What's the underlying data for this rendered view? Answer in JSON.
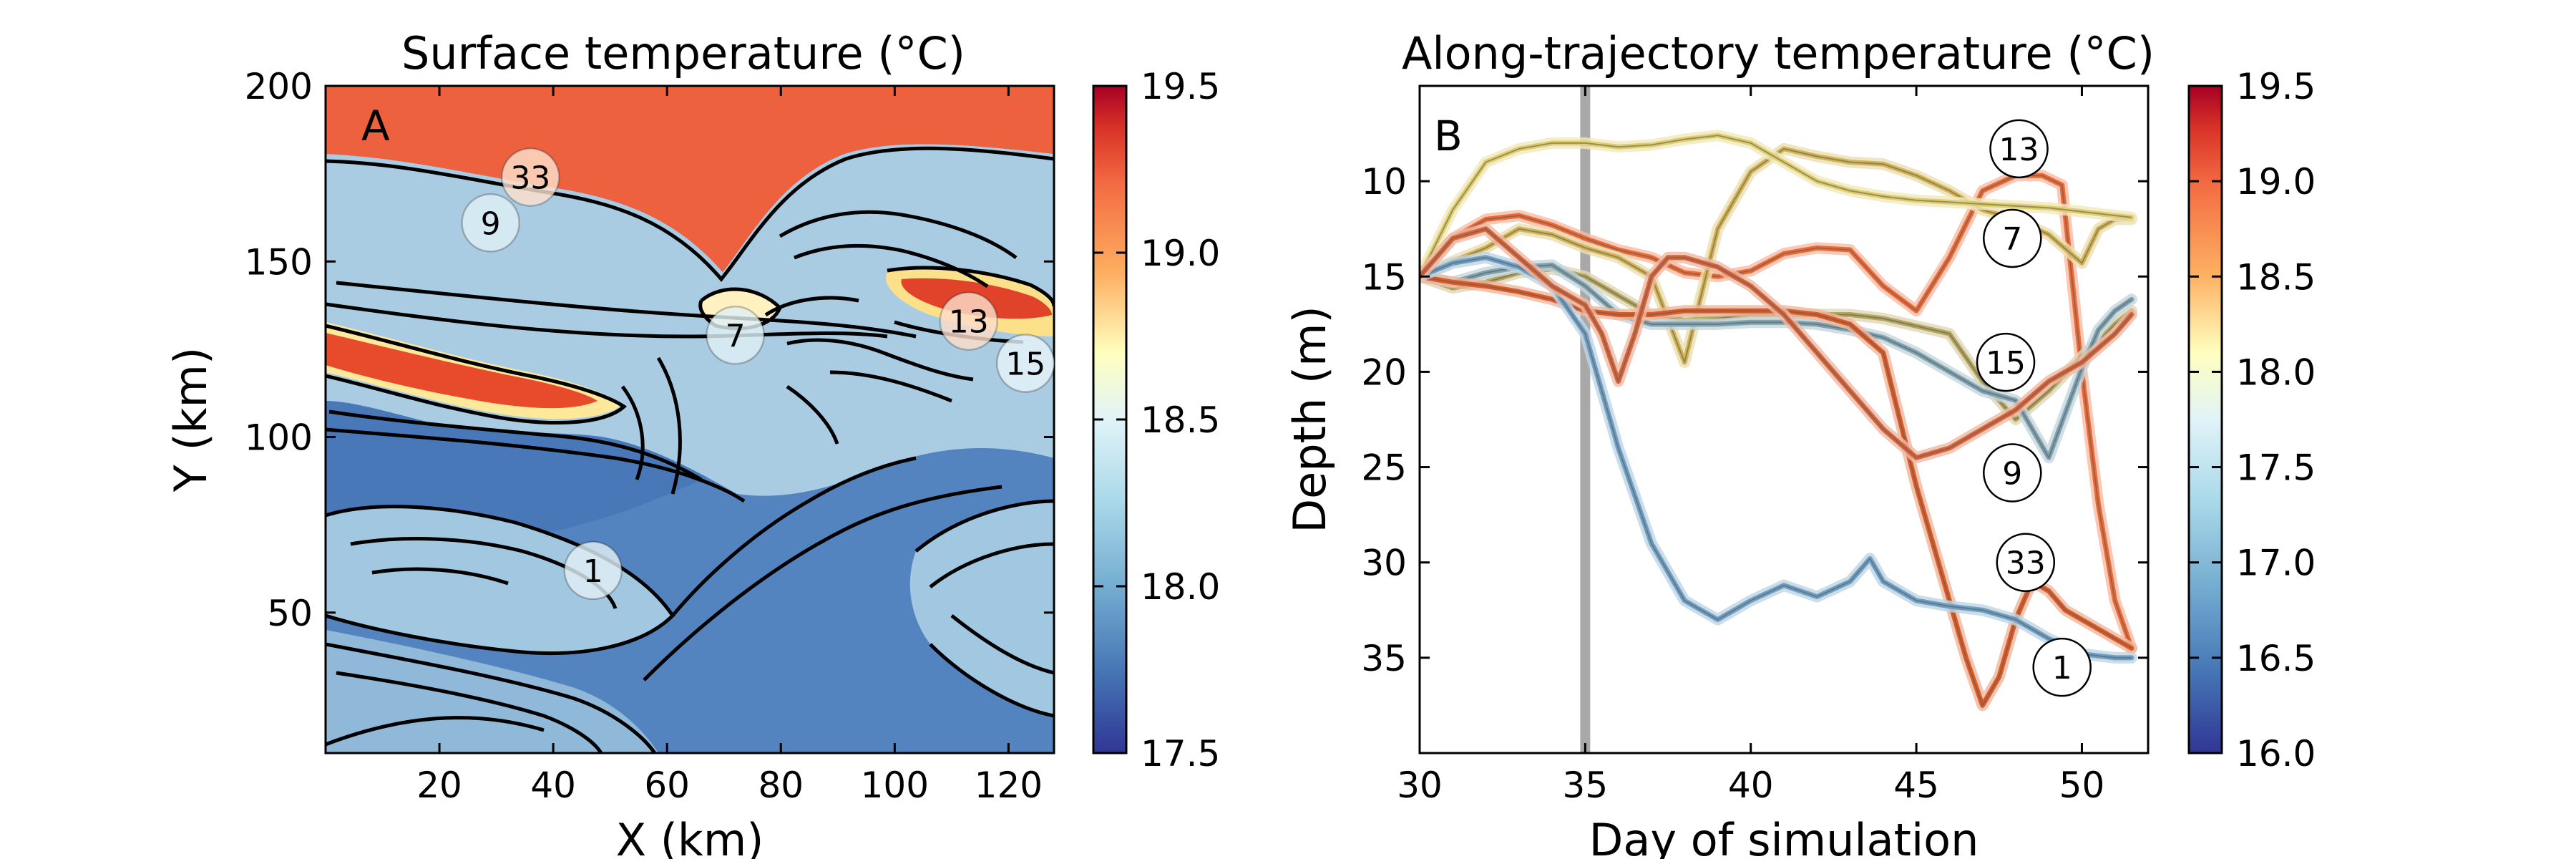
{
  "panel_a": {
    "label": "A",
    "title": "Surface temperature (°C)",
    "xlabel": "X (km)",
    "ylabel": "Y (km)",
    "xlim": [
      0,
      128
    ],
    "ylim": [
      10,
      200
    ],
    "xticks": [
      20,
      40,
      60,
      80,
      100,
      120
    ],
    "yticks": [
      50,
      100,
      150,
      200
    ],
    "colorbar": {
      "vmin": 17.5,
      "vmax": 19.5,
      "ticks": [
        "19.5",
        "19.0",
        "18.5",
        "18.0",
        "17.5"
      ]
    },
    "markers": [
      {
        "id": "33",
        "x": 36,
        "y": 174,
        "temp": 19.0
      },
      {
        "id": "9",
        "x": 29,
        "y": 161,
        "temp": 18.2
      },
      {
        "id": "7",
        "x": 72,
        "y": 129,
        "temp": 18.2
      },
      {
        "id": "13",
        "x": 113,
        "y": 133,
        "temp": 19.05
      },
      {
        "id": "15",
        "x": 123,
        "y": 121,
        "temp": 18.3
      },
      {
        "id": "1",
        "x": 47,
        "y": 62,
        "temp": 18.2
      }
    ]
  },
  "panel_b": {
    "label": "B",
    "title": "Along-trajectory temperature (°C)",
    "xlabel": "Day of simulation",
    "ylabel": "Depth (m)",
    "colorbar": {
      "ticks": [
        "19.5",
        "19.0",
        "18.5",
        "18.0",
        "17.5",
        "17.0",
        "16.5",
        "16.0"
      ]
    },
    "markers": [
      {
        "id": "13",
        "x": 48.1,
        "y": 8.3
      },
      {
        "id": "7",
        "x": 47.9,
        "y": 13.0
      },
      {
        "id": "15",
        "x": 47.7,
        "y": 19.5
      },
      {
        "id": "9",
        "x": 47.9,
        "y": 25.3
      },
      {
        "id": "33",
        "x": 48.3,
        "y": 30.0
      },
      {
        "id": "1",
        "x": 49.4,
        "y": 35.5
      }
    ]
  },
  "chart_data": [
    {
      "type": "heatmap",
      "title": "Surface temperature (°C)",
      "xlabel": "X (km)",
      "ylabel": "Y (km)",
      "xlim": [
        0,
        128
      ],
      "ylim": [
        10,
        200
      ],
      "colorbar_range": [
        17.5,
        19.5
      ],
      "colormap": "RdYlBu_r",
      "annotated_trajectories": [
        "33",
        "9",
        "7",
        "13",
        "15",
        "1"
      ]
    },
    {
      "type": "line",
      "title": "Along-trajectory temperature (°C)",
      "xlabel": "Day of simulation",
      "ylabel": "Depth (m)",
      "xlim": [
        30,
        52
      ],
      "ylim": [
        40,
        5
      ],
      "y_inverted": true,
      "xticks": [
        30,
        35,
        40,
        45,
        50
      ],
      "yticks": [
        10,
        15,
        20,
        25,
        30,
        35
      ],
      "colorbar_range": [
        16.0,
        19.5
      ],
      "vertical_line_x": 35,
      "series": [
        {
          "trajectory": "13",
          "color": "#ec6a36",
          "x": [
            30,
            31,
            32,
            33,
            34,
            35,
            36,
            37,
            38,
            39,
            40,
            41,
            42,
            43,
            44,
            45,
            46,
            47,
            48,
            48.8,
            49.4,
            50,
            50.5,
            51,
            51.5
          ],
          "y": [
            15.0,
            13.0,
            12.0,
            11.8,
            12.3,
            13.0,
            13.6,
            14.0,
            14.8,
            15.0,
            14.7,
            13.8,
            13.5,
            13.6,
            15.5,
            16.8,
            14.0,
            10.5,
            9.7,
            9.7,
            10.2,
            20.0,
            27.0,
            32.0,
            34.5
          ]
        },
        {
          "trajectory": "7",
          "color": "#d3b555",
          "x": [
            30,
            31,
            32,
            33,
            34,
            35,
            36,
            37,
            38,
            39,
            40,
            41,
            42,
            43,
            44,
            45,
            46,
            47,
            48,
            49,
            50,
            50.5,
            51,
            51.5
          ],
          "y": [
            15.0,
            14.2,
            13.5,
            12.5,
            12.8,
            13.5,
            14.0,
            15.0,
            19.5,
            12.5,
            9.5,
            8.3,
            8.7,
            9.0,
            9.1,
            9.7,
            10.5,
            11.5,
            12.0,
            12.8,
            14.3,
            12.5,
            12.0,
            12.0
          ]
        },
        {
          "trajectory": "15",
          "color": "#b6a75e",
          "x": [
            30,
            31,
            32,
            33,
            34,
            35,
            36,
            37,
            38,
            39,
            40,
            41,
            42,
            43,
            44,
            45,
            46,
            47,
            48,
            49,
            50,
            50.5,
            51,
            51.5
          ],
          "y": [
            15.0,
            15.6,
            15.3,
            14.8,
            14.6,
            15.0,
            16.0,
            17.0,
            17.3,
            17.2,
            17.0,
            17.0,
            17.0,
            17.0,
            17.2,
            17.6,
            18.0,
            20.5,
            22.5,
            21.0,
            19.2,
            18.4,
            17.5,
            16.8
          ]
        },
        {
          "trajectory": "9",
          "color": "#7ea4b1",
          "x": [
            30,
            31,
            32,
            33,
            34,
            35,
            36,
            37,
            38,
            39,
            40,
            41,
            42,
            43,
            44,
            45,
            46,
            47,
            48,
            49,
            50,
            50.5,
            51,
            51.5
          ],
          "y": [
            15.0,
            15.3,
            14.8,
            14.5,
            14.4,
            15.5,
            17.0,
            17.5,
            17.5,
            17.5,
            17.4,
            17.4,
            17.5,
            17.8,
            18.2,
            19.0,
            20.0,
            21.0,
            21.5,
            24.5,
            19.8,
            17.8,
            16.8,
            16.2
          ]
        },
        {
          "trajectory": "33",
          "color": "#dc5c28",
          "x": [
            30,
            31,
            32,
            33,
            34,
            35,
            36,
            37,
            38,
            39,
            40,
            41,
            42,
            43,
            44,
            45,
            46,
            46.5,
            47,
            47.5,
            48,
            48.5,
            49,
            49.5,
            50,
            51,
            51.5
          ],
          "y": [
            15.0,
            15.3,
            15.5,
            15.8,
            16.2,
            16.8,
            17.0,
            17.0,
            16.8,
            16.8,
            16.8,
            16.8,
            17.0,
            17.5,
            19.0,
            26.0,
            32.0,
            35.0,
            37.5,
            36.0,
            33.0,
            31.0,
            31.5,
            32.5,
            33.0,
            34.0,
            34.5
          ]
        },
        {
          "trajectory": "1",
          "color": "#6f9fc4",
          "x": [
            30,
            31,
            32,
            33,
            34,
            35,
            36,
            37,
            38,
            39,
            40,
            41,
            42,
            43,
            43.6,
            44,
            45,
            46,
            47,
            48,
            49,
            50,
            51,
            51.5
          ],
          "y": [
            15.0,
            14.3,
            14.0,
            14.5,
            15.5,
            18.0,
            24.0,
            29.0,
            32.0,
            33.0,
            32.0,
            31.2,
            31.8,
            31.0,
            29.8,
            31.0,
            32.0,
            32.3,
            32.5,
            33.0,
            34.0,
            34.8,
            35.0,
            35.0
          ]
        },
        {
          "trajectory": "",
          "color": "#e0cf6c",
          "x": [
            30,
            31,
            32,
            33,
            34,
            35,
            36,
            37,
            38,
            39,
            40,
            41,
            42,
            43,
            44,
            45,
            46,
            47,
            48,
            49,
            50,
            51,
            51.5
          ],
          "y": [
            15.0,
            11.5,
            9.0,
            8.3,
            8.0,
            8.0,
            8.2,
            8.1,
            7.8,
            7.6,
            8.0,
            9.0,
            10.0,
            10.5,
            10.8,
            11.0,
            11.1,
            11.2,
            11.3,
            11.4,
            11.6,
            11.8,
            11.9
          ]
        },
        {
          "trajectory": "",
          "color": "#d9653a",
          "x": [
            30,
            31,
            32,
            33,
            34,
            35,
            35.5,
            36,
            36.5,
            37,
            37.5,
            38,
            39,
            40,
            41,
            42,
            43,
            44,
            45,
            46,
            47,
            48,
            49,
            49.5,
            50,
            51,
            51.5
          ],
          "y": [
            15.0,
            13.0,
            12.5,
            14.0,
            15.5,
            16.5,
            18.0,
            20.5,
            18.0,
            15.0,
            14.0,
            14.0,
            14.5,
            15.5,
            17.0,
            19.0,
            21.0,
            23.0,
            24.5,
            24.0,
            23.0,
            22.0,
            20.5,
            20.0,
            19.5,
            18.0,
            17.0
          ]
        }
      ]
    }
  ]
}
